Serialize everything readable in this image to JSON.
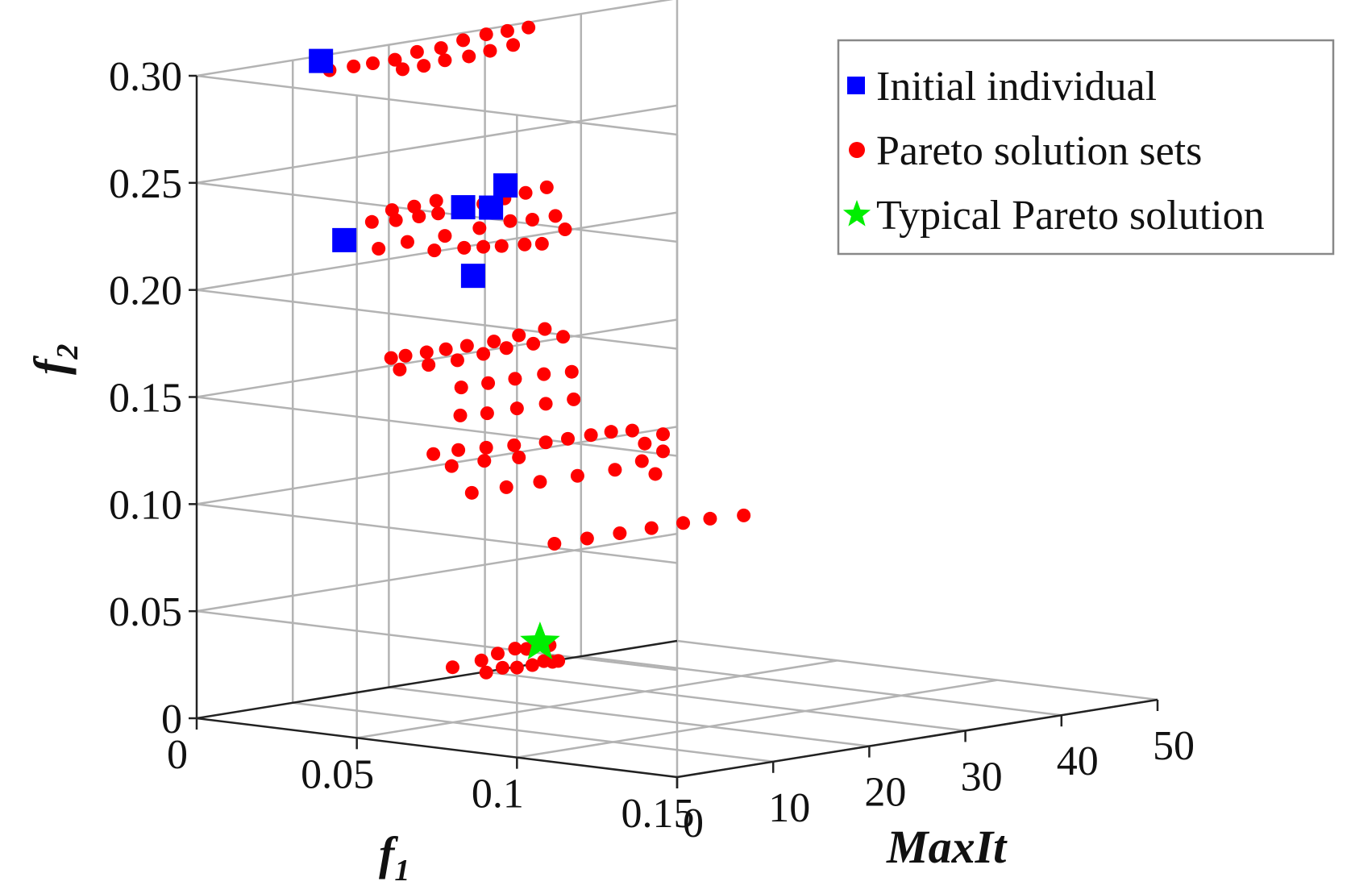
{
  "chart_data": {
    "type": "scatter3d",
    "title": "",
    "xlabel_prefix": "f",
    "xlabel_sub": "1",
    "ylabel": "MaxIt",
    "zlabel_prefix": "f",
    "zlabel_sub": "2",
    "xlim": [
      0,
      0.15
    ],
    "ylim": [
      0,
      50
    ],
    "zlim": [
      0,
      0.3
    ],
    "grid": true,
    "legend_position": "top-right",
    "x_ticks": [
      {
        "value": 0,
        "label": "0"
      },
      {
        "value": 0.05,
        "label": "0.05"
      },
      {
        "value": 0.1,
        "label": "0.1"
      },
      {
        "value": 0.15,
        "label": "0.15"
      }
    ],
    "y_ticks": [
      {
        "value": 0,
        "label": "0"
      },
      {
        "value": 10,
        "label": "10"
      },
      {
        "value": 20,
        "label": "20"
      },
      {
        "value": 30,
        "label": "30"
      },
      {
        "value": 40,
        "label": "40"
      },
      {
        "value": 50,
        "label": "50"
      }
    ],
    "z_ticks": [
      {
        "value": 0,
        "label": "0"
      },
      {
        "value": 0.05,
        "label": "0.05"
      },
      {
        "value": 0.1,
        "label": "0.10"
      },
      {
        "value": 0.15,
        "label": "0.15"
      },
      {
        "value": 0.2,
        "label": "0.20"
      },
      {
        "value": 0.25,
        "label": "0.25"
      },
      {
        "value": 0.3,
        "label": "0.30"
      }
    ],
    "series": [
      {
        "name": "Initial individual",
        "marker": "square",
        "color": "#0000ff",
        "points": [
          [
            0.001,
            12.6,
            0.298
          ],
          [
            0.002,
            14.7,
            0.213
          ],
          [
            0.001,
            27.4,
            0.219
          ],
          [
            0.004,
            29.3,
            0.218
          ],
          [
            0.001,
            31.8,
            0.226
          ],
          [
            0.083,
            1.1,
            0.221
          ]
        ]
      },
      {
        "name": "Pareto solution sets",
        "marker": "circle",
        "color": "#ff0000",
        "points": [
          [
            0.001,
            13.5,
            0.293
          ],
          [
            0.001,
            16.0,
            0.293
          ],
          [
            0.001,
            18.0,
            0.293
          ],
          [
            0.001,
            20.3,
            0.293
          ],
          [
            0.001,
            22.6,
            0.295
          ],
          [
            0.001,
            25.1,
            0.295
          ],
          [
            0.001,
            27.4,
            0.297
          ],
          [
            0.001,
            29.8,
            0.298
          ],
          [
            0.001,
            32.0,
            0.298
          ],
          [
            0.001,
            34.2,
            0.298
          ],
          [
            0.001,
            21.1,
            0.288
          ],
          [
            0.001,
            23.3,
            0.288
          ],
          [
            0.001,
            25.5,
            0.289
          ],
          [
            0.001,
            28.0,
            0.289
          ],
          [
            0.001,
            30.2,
            0.29
          ],
          [
            0.001,
            32.6,
            0.291
          ],
          [
            0.001,
            17.9,
            0.219
          ],
          [
            0.001,
            20.4,
            0.218
          ],
          [
            0.001,
            22.8,
            0.218
          ],
          [
            0.001,
            24.8,
            0.218
          ],
          [
            0.001,
            27.1,
            0.218
          ],
          [
            0.001,
            29.5,
            0.219
          ],
          [
            0.001,
            31.7,
            0.22
          ],
          [
            0.001,
            33.9,
            0.221
          ],
          [
            0.001,
            36.1,
            0.222
          ],
          [
            0.001,
            20.0,
            0.223
          ],
          [
            0.001,
            22.3,
            0.223
          ],
          [
            0.001,
            24.6,
            0.224
          ],
          [
            0.001,
            18.6,
            0.206
          ],
          [
            0.001,
            21.6,
            0.207
          ],
          [
            0.001,
            25.5,
            0.207
          ],
          [
            0.001,
            29.1,
            0.208
          ],
          [
            0.001,
            32.3,
            0.209
          ],
          [
            0.001,
            34.6,
            0.208
          ],
          [
            0.001,
            37.0,
            0.208
          ],
          [
            0.001,
            38.0,
            0.201
          ],
          [
            0.001,
            24.4,
            0.201
          ],
          [
            0.001,
            27.5,
            0.2
          ],
          [
            0.001,
            29.5,
            0.199
          ],
          [
            0.001,
            31.4,
            0.198
          ],
          [
            0.001,
            33.8,
            0.197
          ],
          [
            0.001,
            35.6,
            0.196
          ],
          [
            0.001,
            19.9,
            0.154
          ],
          [
            0.001,
            21.4,
            0.154
          ],
          [
            0.001,
            23.6,
            0.154
          ],
          [
            0.001,
            25.6,
            0.154
          ],
          [
            0.001,
            27.8,
            0.154
          ],
          [
            0.001,
            30.6,
            0.154
          ],
          [
            0.001,
            33.2,
            0.155
          ],
          [
            0.001,
            35.9,
            0.156
          ],
          [
            0.001,
            20.8,
            0.148
          ],
          [
            0.001,
            23.8,
            0.148
          ],
          [
            0.001,
            26.8,
            0.148
          ],
          [
            0.001,
            29.5,
            0.149
          ],
          [
            0.001,
            31.9,
            0.15
          ],
          [
            0.001,
            34.7,
            0.15
          ],
          [
            0.001,
            37.8,
            0.151
          ],
          [
            0.001,
            27.2,
            0.135
          ],
          [
            0.001,
            30.0,
            0.135
          ],
          [
            0.001,
            32.8,
            0.135
          ],
          [
            0.001,
            35.8,
            0.135
          ],
          [
            0.001,
            38.7,
            0.134
          ],
          [
            0.001,
            27.1,
            0.122
          ],
          [
            0.001,
            29.9,
            0.121
          ],
          [
            0.001,
            33.0,
            0.121
          ],
          [
            0.001,
            36.0,
            0.121
          ],
          [
            0.001,
            38.9,
            0.121
          ],
          [
            0.001,
            24.3,
            0.106
          ],
          [
            0.001,
            26.9,
            0.106
          ],
          [
            0.001,
            29.8,
            0.105
          ],
          [
            0.001,
            32.7,
            0.104
          ],
          [
            0.001,
            36.0,
            0.103
          ],
          [
            0.001,
            38.3,
            0.103
          ],
          [
            0.001,
            40.7,
            0.103
          ],
          [
            0.001,
            42.8,
            0.103
          ],
          [
            0.001,
            45.0,
            0.102
          ],
          [
            0.001,
            26.2,
            0.099
          ],
          [
            0.001,
            29.6,
            0.099
          ],
          [
            0.001,
            33.2,
            0.098
          ],
          [
            0.001,
            28.3,
            0.085
          ],
          [
            0.001,
            31.9,
            0.085
          ],
          [
            0.001,
            35.4,
            0.085
          ],
          [
            0.001,
            39.3,
            0.085
          ],
          [
            0.001,
            43.2,
            0.085
          ],
          [
            0.001,
            46.0,
            0.087
          ],
          [
            0.001,
            46.3,
            0.095
          ],
          [
            0.001,
            48.2,
            0.098
          ],
          [
            0.001,
            48.2,
            0.09
          ],
          [
            0.001,
            47.4,
            0.08
          ],
          [
            0.001,
            36.9,
            0.055
          ],
          [
            0.001,
            40.3,
            0.055
          ],
          [
            0.001,
            43.7,
            0.055
          ],
          [
            0.001,
            47.0,
            0.055
          ],
          [
            0.001,
            50.3,
            0.055
          ],
          [
            0.001,
            53.1,
            0.055
          ],
          [
            0.001,
            56.6,
            0.054
          ],
          [
            0.001,
            26.3,
            0.005
          ],
          [
            0.001,
            29.3,
            0.006
          ],
          [
            0.001,
            31.0,
            0.008
          ],
          [
            0.001,
            32.8,
            0.009
          ],
          [
            0.001,
            34.0,
            0.008
          ],
          [
            0.001,
            35.6,
            0.009
          ],
          [
            0.001,
            36.4,
            0.008
          ],
          [
            0.001,
            29.8,
            0.0
          ],
          [
            0.001,
            31.5,
            0.001
          ],
          [
            0.001,
            33.0,
            0.0
          ],
          [
            0.001,
            34.6,
            0.0
          ],
          [
            0.001,
            35.8,
            0.001
          ],
          [
            0.001,
            36.7,
            0.0
          ],
          [
            0.001,
            37.3,
            0.0
          ]
        ]
      },
      {
        "name": "Typical Pareto solution",
        "marker": "star",
        "color": "#00ee00",
        "points": [
          [
            0.001,
            35.4,
            0.01
          ]
        ]
      }
    ]
  }
}
